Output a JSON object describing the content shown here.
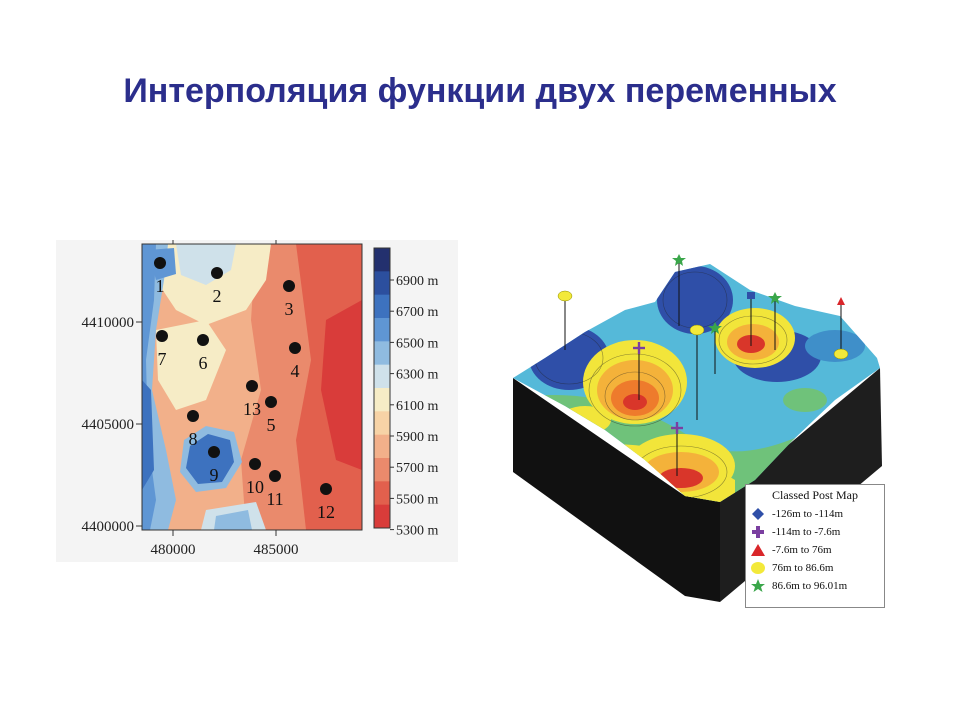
{
  "title": "Интерполяция функции двух переменных",
  "left_map": {
    "y_ticks": [
      "4410000",
      "4405000",
      "4400000"
    ],
    "x_ticks": [
      "480000",
      "485000"
    ],
    "colorbar_labels": [
      "6900 m",
      "6700 m",
      "6500 m",
      "6300 m",
      "6100 m",
      "5900 m",
      "5700 m",
      "5500 m",
      "5300 m"
    ],
    "colorbar_colors": [
      "#23306e",
      "#2c4f9e",
      "#3d72bf",
      "#5f96d4",
      "#8fbbe0",
      "#cfe1ea",
      "#f6ecc6",
      "#f7d3a6",
      "#f2b08a",
      "#ea8a6c",
      "#e2604d",
      "#d93c3a"
    ],
    "points": [
      {
        "label": "1"
      },
      {
        "label": "2"
      },
      {
        "label": "3"
      },
      {
        "label": "4"
      },
      {
        "label": "5"
      },
      {
        "label": "6"
      },
      {
        "label": "7"
      },
      {
        "label": "8"
      },
      {
        "label": "9"
      },
      {
        "label": "10"
      },
      {
        "label": "11"
      },
      {
        "label": "12"
      },
      {
        "label": "13"
      }
    ]
  },
  "right_map": {
    "legend_title": "Classed Post Map",
    "legend_items": [
      {
        "label": "-126m  to  -114m",
        "marker": "diamond",
        "color": "#2f4fa8"
      },
      {
        "label": "-114m  to  -7.6m",
        "marker": "plus",
        "color": "#7b3fa0"
      },
      {
        "label": "-7.6m  to  76m",
        "marker": "triangle",
        "color": "#d9262a"
      },
      {
        "label": "76m  to  86.6m",
        "marker": "circle",
        "color": "#f3e93a"
      },
      {
        "label": "86.6m  to  96.01m",
        "marker": "star",
        "color": "#3aa64a"
      }
    ]
  }
}
